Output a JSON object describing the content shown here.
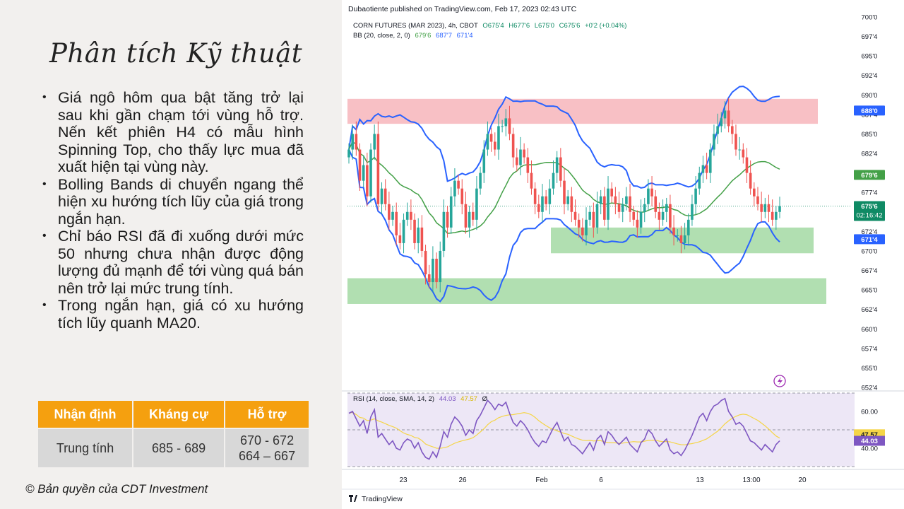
{
  "slide": {
    "title": "Phân tích Kỹ thuật",
    "bullets": [
      "Giá ngô hôm qua bật tăng trở lại sau khi gần chạm tới vùng hỗ trợ. Nến kết phiên H4 có mẫu hình Spinning Top, cho thấy lực mua đã xuất hiện tại vùng này.",
      "Bolling Bands di chuyển ngang thể hiện xu hướng tích lũy của giá trong ngắn hạn.",
      "Chỉ báo RSI đã đi xuống dưới mức 50 nhưng chưa nhận được động lượng đủ mạnh để tới vùng quá bán nên trở lại mức trung tính.",
      "Trong ngắn hạn, giá có xu hướng tích lũy quanh MA20."
    ],
    "table": {
      "headers": [
        "Nhận định",
        "Kháng cự",
        "Hỗ trợ"
      ],
      "row": {
        "view": "Trung tính",
        "resistance": "685 - 689",
        "support_1": "670 - 672",
        "support_2": "664 – 667"
      }
    },
    "copyright": "© Bản quyền của CDT Investment"
  },
  "chart_data": {
    "type": "candlestick",
    "published": "Dubaotiente published on TradingView.com, Feb 17, 2023 02:43 UTC",
    "symbol_line": {
      "name": "CORN FUTURES (MAR 2023), 4h, CBOT",
      "open": "O675'4",
      "high": "H677'6",
      "low": "L675'0",
      "close": "C675'6",
      "change": "+0'2 (+0.04%)"
    },
    "bb_line": {
      "label": "BB (20, close, 2, 0)",
      "basis": "679'6",
      "upper": "687'7",
      "lower": "671'4"
    },
    "rsi_line": {
      "label": "RSI (14, close, SMA, 14, 2)",
      "rsi": "44.03",
      "ma": "47.57",
      "extra": "Ø"
    },
    "y_ticks": [
      "700'0",
      "697'4",
      "695'0",
      "692'4",
      "690'0",
      "687'4",
      "685'0",
      "682'4",
      "680'0",
      "677'4",
      "675'0",
      "672'4",
      "670'0",
      "667'4",
      "665'0",
      "662'4",
      "660'0",
      "657'4",
      "655'0",
      "652'4"
    ],
    "ylim": [
      652.5,
      700
    ],
    "x_ticks": [
      "23",
      "26",
      "Feb",
      "6",
      "13",
      "13:00",
      "20"
    ],
    "price_labels": {
      "upper": "688'0",
      "basis": "679'6",
      "last": "675'6",
      "countdown": "02:16:42",
      "lower": "671'4"
    },
    "zones": [
      {
        "kind": "resistance",
        "from": 686.3,
        "to": 689.5,
        "color": "#f7b9bf"
      },
      {
        "kind": "support",
        "from": 669.7,
        "to": 673,
        "color": "#a8dba8"
      },
      {
        "kind": "support",
        "from": 663.2,
        "to": 666.5,
        "color": "#a8dba8"
      }
    ],
    "closes": [
      683,
      685,
      683,
      679,
      681,
      677,
      683,
      685,
      676,
      678,
      676,
      674,
      675,
      672,
      671,
      674,
      675,
      674,
      671,
      673,
      670,
      667,
      666,
      669,
      666,
      670,
      675,
      673,
      677,
      679,
      678,
      676,
      673,
      675,
      674,
      678,
      680,
      683,
      685,
      684,
      683,
      686,
      686,
      687,
      685,
      682,
      681,
      683,
      682,
      680,
      678,
      676,
      675,
      677,
      676,
      678,
      680,
      682,
      679,
      676,
      677,
      675,
      674,
      673,
      672,
      674,
      675,
      673,
      676,
      677,
      674,
      678,
      677,
      676,
      675,
      676,
      677,
      675,
      674,
      673,
      675,
      676,
      678,
      677,
      675,
      674,
      675,
      676,
      673,
      672,
      672,
      671,
      672,
      674,
      676,
      678,
      680,
      681,
      680,
      683,
      685,
      686,
      687,
      688,
      686,
      685,
      683,
      683,
      682,
      680,
      678,
      677,
      676,
      675,
      676,
      675,
      674,
      675,
      675.75
    ],
    "rsi": [
      59,
      60,
      56,
      52,
      55,
      48,
      57,
      61,
      46,
      48,
      45,
      42,
      44,
      40,
      39,
      43,
      45,
      44,
      40,
      43,
      38,
      35,
      34,
      38,
      35,
      41,
      49,
      46,
      53,
      57,
      55,
      52,
      47,
      50,
      48,
      55,
      58,
      62,
      66,
      64,
      61,
      64,
      63,
      65,
      59,
      54,
      52,
      55,
      53,
      50,
      46,
      43,
      41,
      44,
      43,
      47,
      51,
      54,
      49,
      44,
      46,
      42,
      41,
      39,
      37,
      40,
      43,
      39,
      45,
      47,
      42,
      49,
      47,
      44,
      42,
      44,
      46,
      42,
      40,
      38,
      43,
      45,
      50,
      48,
      44,
      41,
      43,
      45,
      39,
      37,
      38,
      36,
      39,
      43,
      47,
      52,
      57,
      59,
      55,
      60,
      63,
      64,
      66,
      67,
      60,
      57,
      53,
      54,
      52,
      48,
      44,
      43,
      41,
      39,
      42,
      40,
      38,
      42,
      44.03
    ],
    "rsi_ylim": [
      30,
      70
    ],
    "rsi_levels": {
      "upper": 70,
      "middle": 50,
      "lower": 30
    },
    "rsi_ticks": [
      "60.00",
      "40.00"
    ],
    "rsi_labels": {
      "ma": "47.57",
      "rsi": "44.03"
    },
    "colors": {
      "up": "#26a69a",
      "down": "#ef5350",
      "bb_band": "#2962ff",
      "bb_basis": "#43a047",
      "rsi_line": "#7e57c2",
      "rsi_ma": "#f5d547",
      "rsi_bg": "#ede7f6",
      "last_price": "#0f8a64"
    },
    "footer": "TradingView"
  }
}
